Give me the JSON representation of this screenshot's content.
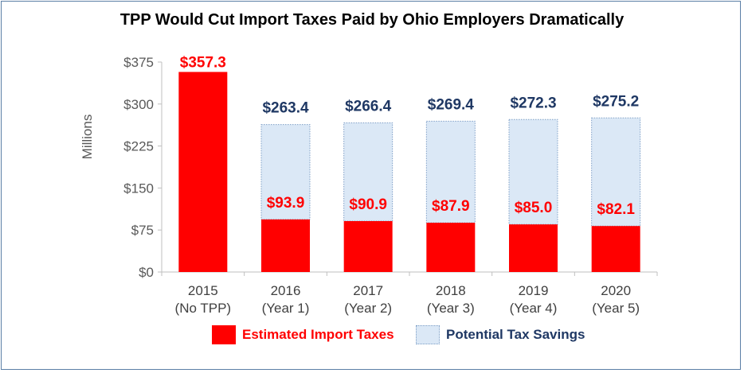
{
  "colors": {
    "import_taxes": "#ff0000",
    "savings_fill": "#dbe8f6",
    "savings_border": "#7f9fc6",
    "red_label": "#ff0000",
    "blue_label": "#1f3864",
    "frame": "#5b7fa6"
  },
  "chart_data": {
    "type": "bar",
    "stacked": true,
    "title": "TPP Would Cut Import Taxes Paid by Ohio Employers Dramatically",
    "ylabel": "Millions",
    "xlabel": "",
    "ylim": [
      0,
      375
    ],
    "yticks": [
      0,
      75,
      150,
      225,
      300,
      375
    ],
    "ytick_labels": [
      "$0",
      "$75",
      "$150",
      "$225",
      "$300",
      "$375"
    ],
    "categories": [
      [
        "2015",
        "(No TPP)"
      ],
      [
        "2016",
        "(Year 1)"
      ],
      [
        "2017",
        "(Year 2)"
      ],
      [
        "2018",
        "(Year 3)"
      ],
      [
        "2019",
        "(Year 4)"
      ],
      [
        "2020",
        "(Year 5)"
      ]
    ],
    "series": [
      {
        "name": "Estimated Import Taxes",
        "values": [
          357.3,
          93.9,
          90.9,
          87.9,
          85.0,
          82.1
        ],
        "labels": [
          "$357.3",
          "$93.9",
          "$90.9",
          "$87.9",
          "$85.0",
          "$82.1"
        ]
      },
      {
        "name": "Potential Tax Savings",
        "values": [
          0,
          169.5,
          175.5,
          181.5,
          187.3,
          193.1
        ],
        "totals": [
          null,
          263.4,
          266.4,
          269.4,
          272.3,
          275.2
        ],
        "labels": [
          "",
          "$263.4",
          "$266.4",
          "$269.4",
          "$272.3",
          "$275.2"
        ]
      }
    ],
    "grid": false,
    "legend_position": "bottom"
  }
}
